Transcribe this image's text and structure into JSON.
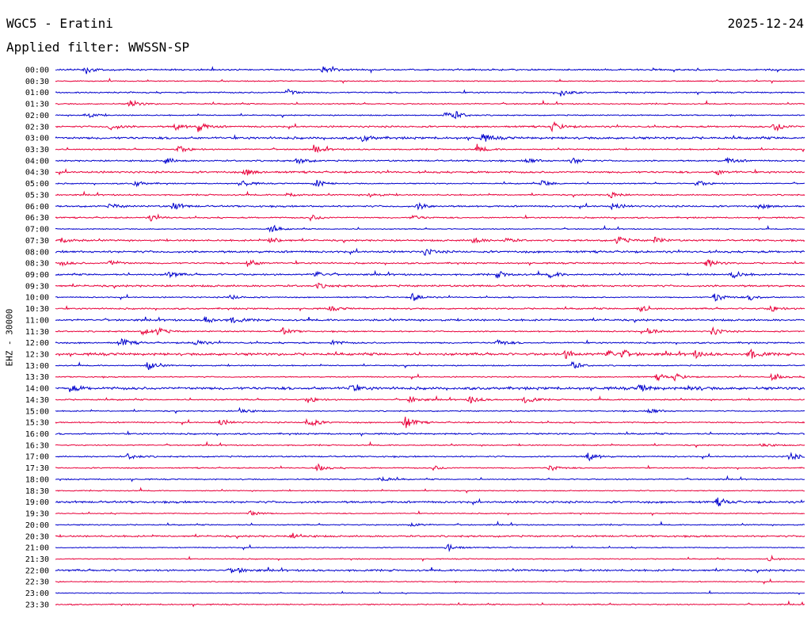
{
  "header": {
    "title": "WGC5 - Eratini",
    "date": "2025-12-24",
    "filter": "Applied filter: WWSSN-SP"
  },
  "chart_data": {
    "type": "helicorder",
    "ylabel": "EHZ - 30000",
    "row_labels": [
      "00:00",
      "00:30",
      "01:00",
      "01:30",
      "02:00",
      "02:30",
      "03:00",
      "03:30",
      "04:00",
      "04:30",
      "05:00",
      "05:30",
      "06:00",
      "06:30",
      "07:00",
      "07:30",
      "08:00",
      "08:30",
      "09:00",
      "09:30",
      "10:00",
      "10:30",
      "11:00",
      "11:30",
      "12:00",
      "12:30",
      "13:00",
      "13:30",
      "14:00",
      "14:30",
      "15:00",
      "15:30",
      "16:00",
      "16:30",
      "17:00",
      "17:30",
      "18:00",
      "18:30",
      "19:00",
      "19:30",
      "20:00",
      "20:30",
      "21:00",
      "21:30",
      "22:00",
      "22:30",
      "23:00",
      "23:30"
    ],
    "row_colors": [
      "#0000cc",
      "#e8003a"
    ],
    "minutes_per_row": 30,
    "noise": [
      0.8,
      0.5,
      0.7,
      0.6,
      0.6,
      0.9,
      1.2,
      0.7,
      0.8,
      1.0,
      0.6,
      0.7,
      0.9,
      0.7,
      0.5,
      0.9,
      1.1,
      0.8,
      0.9,
      1.0,
      0.6,
      0.8,
      1.0,
      0.7,
      0.8,
      1.3,
      0.6,
      0.6,
      1.4,
      0.7,
      0.6,
      0.7,
      0.8,
      0.6,
      0.7,
      0.6,
      0.6,
      0.5,
      1.1,
      0.5,
      0.6,
      0.9,
      0.5,
      0.5,
      1.0,
      0.5,
      0.4,
      0.6
    ],
    "events": [
      {
        "row": 0,
        "minute": 1.2,
        "amp": 5
      },
      {
        "row": 0,
        "minute": 10.7,
        "amp": 5
      },
      {
        "row": 2,
        "minute": 9.3,
        "amp": 4
      },
      {
        "row": 2,
        "minute": 20.2,
        "amp": 5
      },
      {
        "row": 3,
        "minute": 3.0,
        "amp": 5
      },
      {
        "row": 4,
        "minute": 1.2,
        "amp": 4
      },
      {
        "row": 4,
        "minute": 15.6,
        "amp": 4
      },
      {
        "row": 4,
        "minute": 16.0,
        "amp": 4
      },
      {
        "row": 5,
        "minute": 2.2,
        "amp": 4
      },
      {
        "row": 5,
        "minute": 4.8,
        "amp": 4
      },
      {
        "row": 5,
        "minute": 5.7,
        "amp": 6
      },
      {
        "row": 5,
        "minute": 19.9,
        "amp": 6
      },
      {
        "row": 5,
        "minute": 28.8,
        "amp": 6
      },
      {
        "row": 6,
        "minute": 12.3,
        "amp": 4
      },
      {
        "row": 6,
        "minute": 17.1,
        "amp": 5
      },
      {
        "row": 7,
        "minute": 4.9,
        "amp": 5
      },
      {
        "row": 7,
        "minute": 10.4,
        "amp": 4
      },
      {
        "row": 7,
        "minute": 16.9,
        "amp": 4
      },
      {
        "row": 8,
        "minute": 4.4,
        "amp": 4
      },
      {
        "row": 8,
        "minute": 9.7,
        "amp": 4
      },
      {
        "row": 8,
        "minute": 18.9,
        "amp": 4
      },
      {
        "row": 8,
        "minute": 20.7,
        "amp": 4
      },
      {
        "row": 8,
        "minute": 26.9,
        "amp": 4
      },
      {
        "row": 9,
        "minute": 7.6,
        "amp": 4
      },
      {
        "row": 9,
        "minute": 26.5,
        "amp": 3
      },
      {
        "row": 10,
        "minute": 3.2,
        "amp": 4
      },
      {
        "row": 10,
        "minute": 7.5,
        "amp": 4
      },
      {
        "row": 10,
        "minute": 10.4,
        "amp": 5
      },
      {
        "row": 10,
        "minute": 19.5,
        "amp": 4
      },
      {
        "row": 10,
        "minute": 25.7,
        "amp": 4
      },
      {
        "row": 11,
        "minute": 9.3,
        "amp": 3
      },
      {
        "row": 11,
        "minute": 12.6,
        "amp": 3
      },
      {
        "row": 11,
        "minute": 22.2,
        "amp": 4
      },
      {
        "row": 12,
        "minute": 2.2,
        "amp": 3
      },
      {
        "row": 12,
        "minute": 4.7,
        "amp": 5
      },
      {
        "row": 12,
        "minute": 14.5,
        "amp": 4
      },
      {
        "row": 12,
        "minute": 22.3,
        "amp": 4
      },
      {
        "row": 12,
        "minute": 28.2,
        "amp": 3
      },
      {
        "row": 13,
        "minute": 3.8,
        "amp": 4
      },
      {
        "row": 13,
        "minute": 10.2,
        "amp": 4
      },
      {
        "row": 13,
        "minute": 14.3,
        "amp": 3
      },
      {
        "row": 14,
        "minute": 8.6,
        "amp": 5
      },
      {
        "row": 15,
        "minute": 0.2,
        "amp": 4
      },
      {
        "row": 15,
        "minute": 8.6,
        "amp": 4
      },
      {
        "row": 15,
        "minute": 16.7,
        "amp": 4
      },
      {
        "row": 15,
        "minute": 18.0,
        "amp": 3
      },
      {
        "row": 15,
        "minute": 22.5,
        "amp": 5
      },
      {
        "row": 15,
        "minute": 24.0,
        "amp": 4
      },
      {
        "row": 16,
        "minute": 14.8,
        "amp": 4
      },
      {
        "row": 17,
        "minute": 0.2,
        "amp": 3
      },
      {
        "row": 17,
        "minute": 2.2,
        "amp": 4
      },
      {
        "row": 17,
        "minute": 7.7,
        "amp": 5
      },
      {
        "row": 17,
        "minute": 26.1,
        "amp": 5
      },
      {
        "row": 18,
        "minute": 4.5,
        "amp": 4
      },
      {
        "row": 18,
        "minute": 10.4,
        "amp": 4
      },
      {
        "row": 18,
        "minute": 17.7,
        "amp": 4
      },
      {
        "row": 18,
        "minute": 19.8,
        "amp": 4
      },
      {
        "row": 18,
        "minute": 27.1,
        "amp": 5
      },
      {
        "row": 19,
        "minute": 10.5,
        "amp": 3
      },
      {
        "row": 20,
        "minute": 7.0,
        "amp": 3
      },
      {
        "row": 20,
        "minute": 14.3,
        "amp": 5
      },
      {
        "row": 20,
        "minute": 26.4,
        "amp": 6
      },
      {
        "row": 20,
        "minute": 27.8,
        "amp": 4
      },
      {
        "row": 21,
        "minute": 11.0,
        "amp": 3
      },
      {
        "row": 21,
        "minute": 23.4,
        "amp": 4
      },
      {
        "row": 21,
        "minute": 28.6,
        "amp": 4
      },
      {
        "row": 22,
        "minute": 6.0,
        "amp": 4
      },
      {
        "row": 22,
        "minute": 7.1,
        "amp": 4
      },
      {
        "row": 23,
        "minute": 3.5,
        "amp": 4
      },
      {
        "row": 23,
        "minute": 4.1,
        "amp": 4
      },
      {
        "row": 23,
        "minute": 9.1,
        "amp": 4
      },
      {
        "row": 23,
        "minute": 23.8,
        "amp": 4
      },
      {
        "row": 23,
        "minute": 26.3,
        "amp": 5
      },
      {
        "row": 24,
        "minute": 2.6,
        "amp": 6
      },
      {
        "row": 24,
        "minute": 5.6,
        "amp": 4
      },
      {
        "row": 24,
        "minute": 11.1,
        "amp": 3
      },
      {
        "row": 24,
        "minute": 17.7,
        "amp": 4
      },
      {
        "row": 25,
        "minute": 20.4,
        "amp": 5
      },
      {
        "row": 25,
        "minute": 22.1,
        "amp": 5
      },
      {
        "row": 25,
        "minute": 22.7,
        "amp": 4
      },
      {
        "row": 25,
        "minute": 25.6,
        "amp": 4
      },
      {
        "row": 25,
        "minute": 27.8,
        "amp": 6
      },
      {
        "row": 26,
        "minute": 3.7,
        "amp": 6
      },
      {
        "row": 26,
        "minute": 20.7,
        "amp": 5
      },
      {
        "row": 27,
        "minute": 24.1,
        "amp": 4
      },
      {
        "row": 27,
        "minute": 24.8,
        "amp": 4
      },
      {
        "row": 27,
        "minute": 28.7,
        "amp": 4
      },
      {
        "row": 28,
        "minute": 0.6,
        "amp": 4
      },
      {
        "row": 28,
        "minute": 11.8,
        "amp": 4
      },
      {
        "row": 28,
        "minute": 23.4,
        "amp": 4
      },
      {
        "row": 28,
        "minute": 25.4,
        "amp": 3
      },
      {
        "row": 29,
        "minute": 10.1,
        "amp": 4
      },
      {
        "row": 29,
        "minute": 14.2,
        "amp": 4
      },
      {
        "row": 29,
        "minute": 16.6,
        "amp": 5
      },
      {
        "row": 29,
        "minute": 18.8,
        "amp": 5
      },
      {
        "row": 30,
        "minute": 7.4,
        "amp": 4
      },
      {
        "row": 30,
        "minute": 23.8,
        "amp": 4
      },
      {
        "row": 31,
        "minute": 6.6,
        "amp": 4
      },
      {
        "row": 31,
        "minute": 10.1,
        "amp": 7
      },
      {
        "row": 31,
        "minute": 14.0,
        "amp": 8
      },
      {
        "row": 33,
        "minute": 28.3,
        "amp": 3
      },
      {
        "row": 34,
        "minute": 2.9,
        "amp": 4
      },
      {
        "row": 34,
        "minute": 21.3,
        "amp": 6
      },
      {
        "row": 34,
        "minute": 29.4,
        "amp": 5
      },
      {
        "row": 35,
        "minute": 10.5,
        "amp": 4
      },
      {
        "row": 35,
        "minute": 15.1,
        "amp": 3
      },
      {
        "row": 35,
        "minute": 19.8,
        "amp": 4
      },
      {
        "row": 36,
        "minute": 13.0,
        "amp": 4
      },
      {
        "row": 38,
        "minute": 26.5,
        "amp": 5
      },
      {
        "row": 39,
        "minute": 7.8,
        "amp": 4
      },
      {
        "row": 40,
        "minute": 14.2,
        "amp": 3
      },
      {
        "row": 41,
        "minute": 9.5,
        "amp": 4
      },
      {
        "row": 42,
        "minute": 15.7,
        "amp": 5
      },
      {
        "row": 43,
        "minute": 28.6,
        "amp": 3
      },
      {
        "row": 44,
        "minute": 7.1,
        "amp": 5
      }
    ]
  }
}
